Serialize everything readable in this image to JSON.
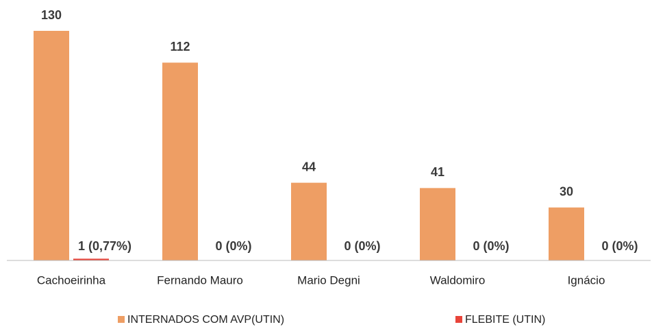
{
  "chart_data": {
    "type": "bar",
    "categories": [
      "Cachoeirinha",
      "Fernando Mauro",
      "Mario Degni",
      "Waldomiro",
      "Ignácio"
    ],
    "series": [
      {
        "name": "INTERNADOS COM AVP(UTIN)",
        "color": "#ee9e64",
        "values": [
          130,
          112,
          44,
          41,
          30
        ]
      },
      {
        "name": "FLEBITE (UTIN)",
        "color": "#e8443a",
        "values": [
          1,
          0,
          0,
          0,
          0
        ],
        "value_labels": [
          "1 (0,77%)",
          "0 (0%)",
          "0 (0%)",
          "0 (0%)",
          "0 (0%)"
        ]
      }
    ]
  }
}
